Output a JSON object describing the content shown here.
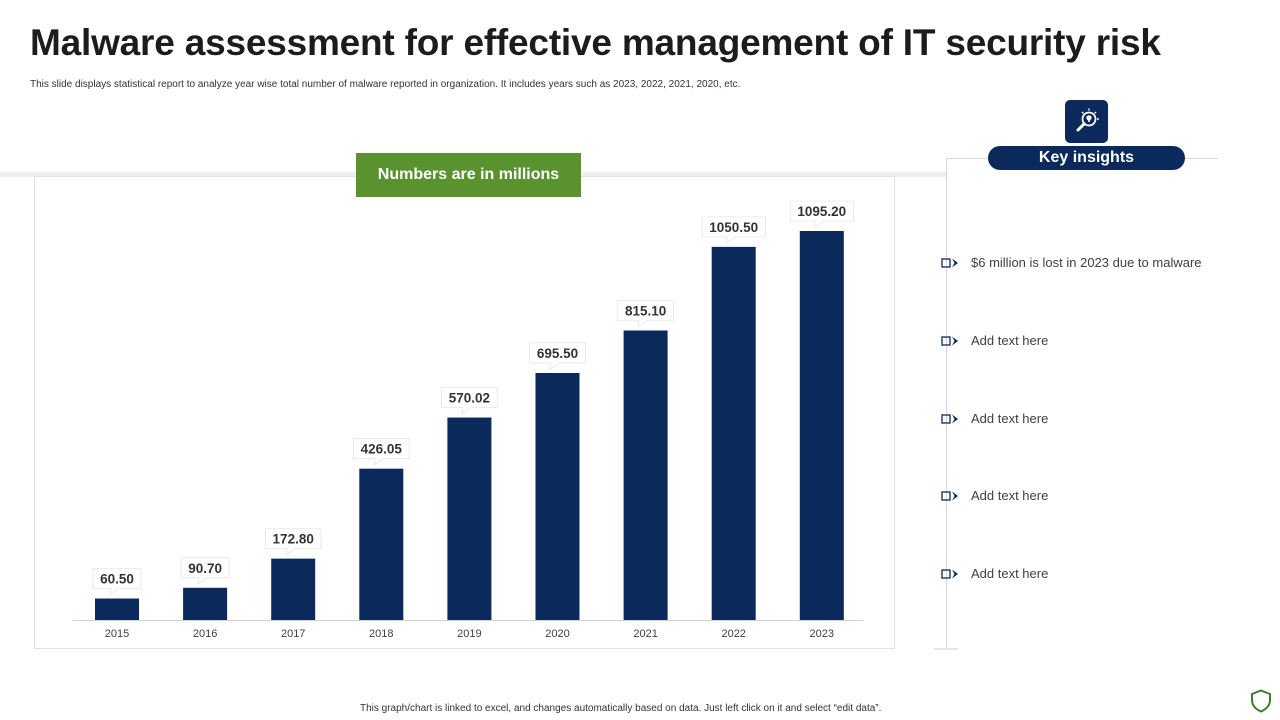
{
  "title": "Malware assessment for effective management of IT security risk",
  "subtitle": "This slide displays statistical report to analyze year wise total number of malware reported in organization. It includes years such as 2023, 2022, 2021, 2020, etc.",
  "units_banner": "Numbers are in millions",
  "insights": {
    "heading": "Key insights",
    "items": [
      "$6  million  is lost in 2023 due to malware",
      "Add text here",
      "Add text here",
      "Add text here",
      "Add text here"
    ]
  },
  "footer": "This graph/chart is linked to excel, and changes automatically based on data. Just left click on it and select “edit data”.",
  "colors": {
    "bar": "#0b2a5b",
    "banner": "#5a9230",
    "accent": "#0b2a5b"
  },
  "chart_data": {
    "type": "bar",
    "title": "",
    "xlabel": "",
    "ylabel": "",
    "categories": [
      "2015",
      "2016",
      "2017",
      "2018",
      "2019",
      "2020",
      "2021",
      "2022",
      "2023"
    ],
    "values": [
      60.5,
      90.7,
      172.8,
      426.05,
      570.02,
      695.5,
      815.1,
      1050.5,
      1095.2
    ],
    "value_labels": [
      "60.50",
      "90.70",
      "172.80",
      "426.05",
      "570.02",
      "695.50",
      "815.10",
      "1050.50",
      "1095.20"
    ],
    "ylim": [
      0,
      1095.2
    ],
    "grid": false,
    "legend": "none"
  }
}
